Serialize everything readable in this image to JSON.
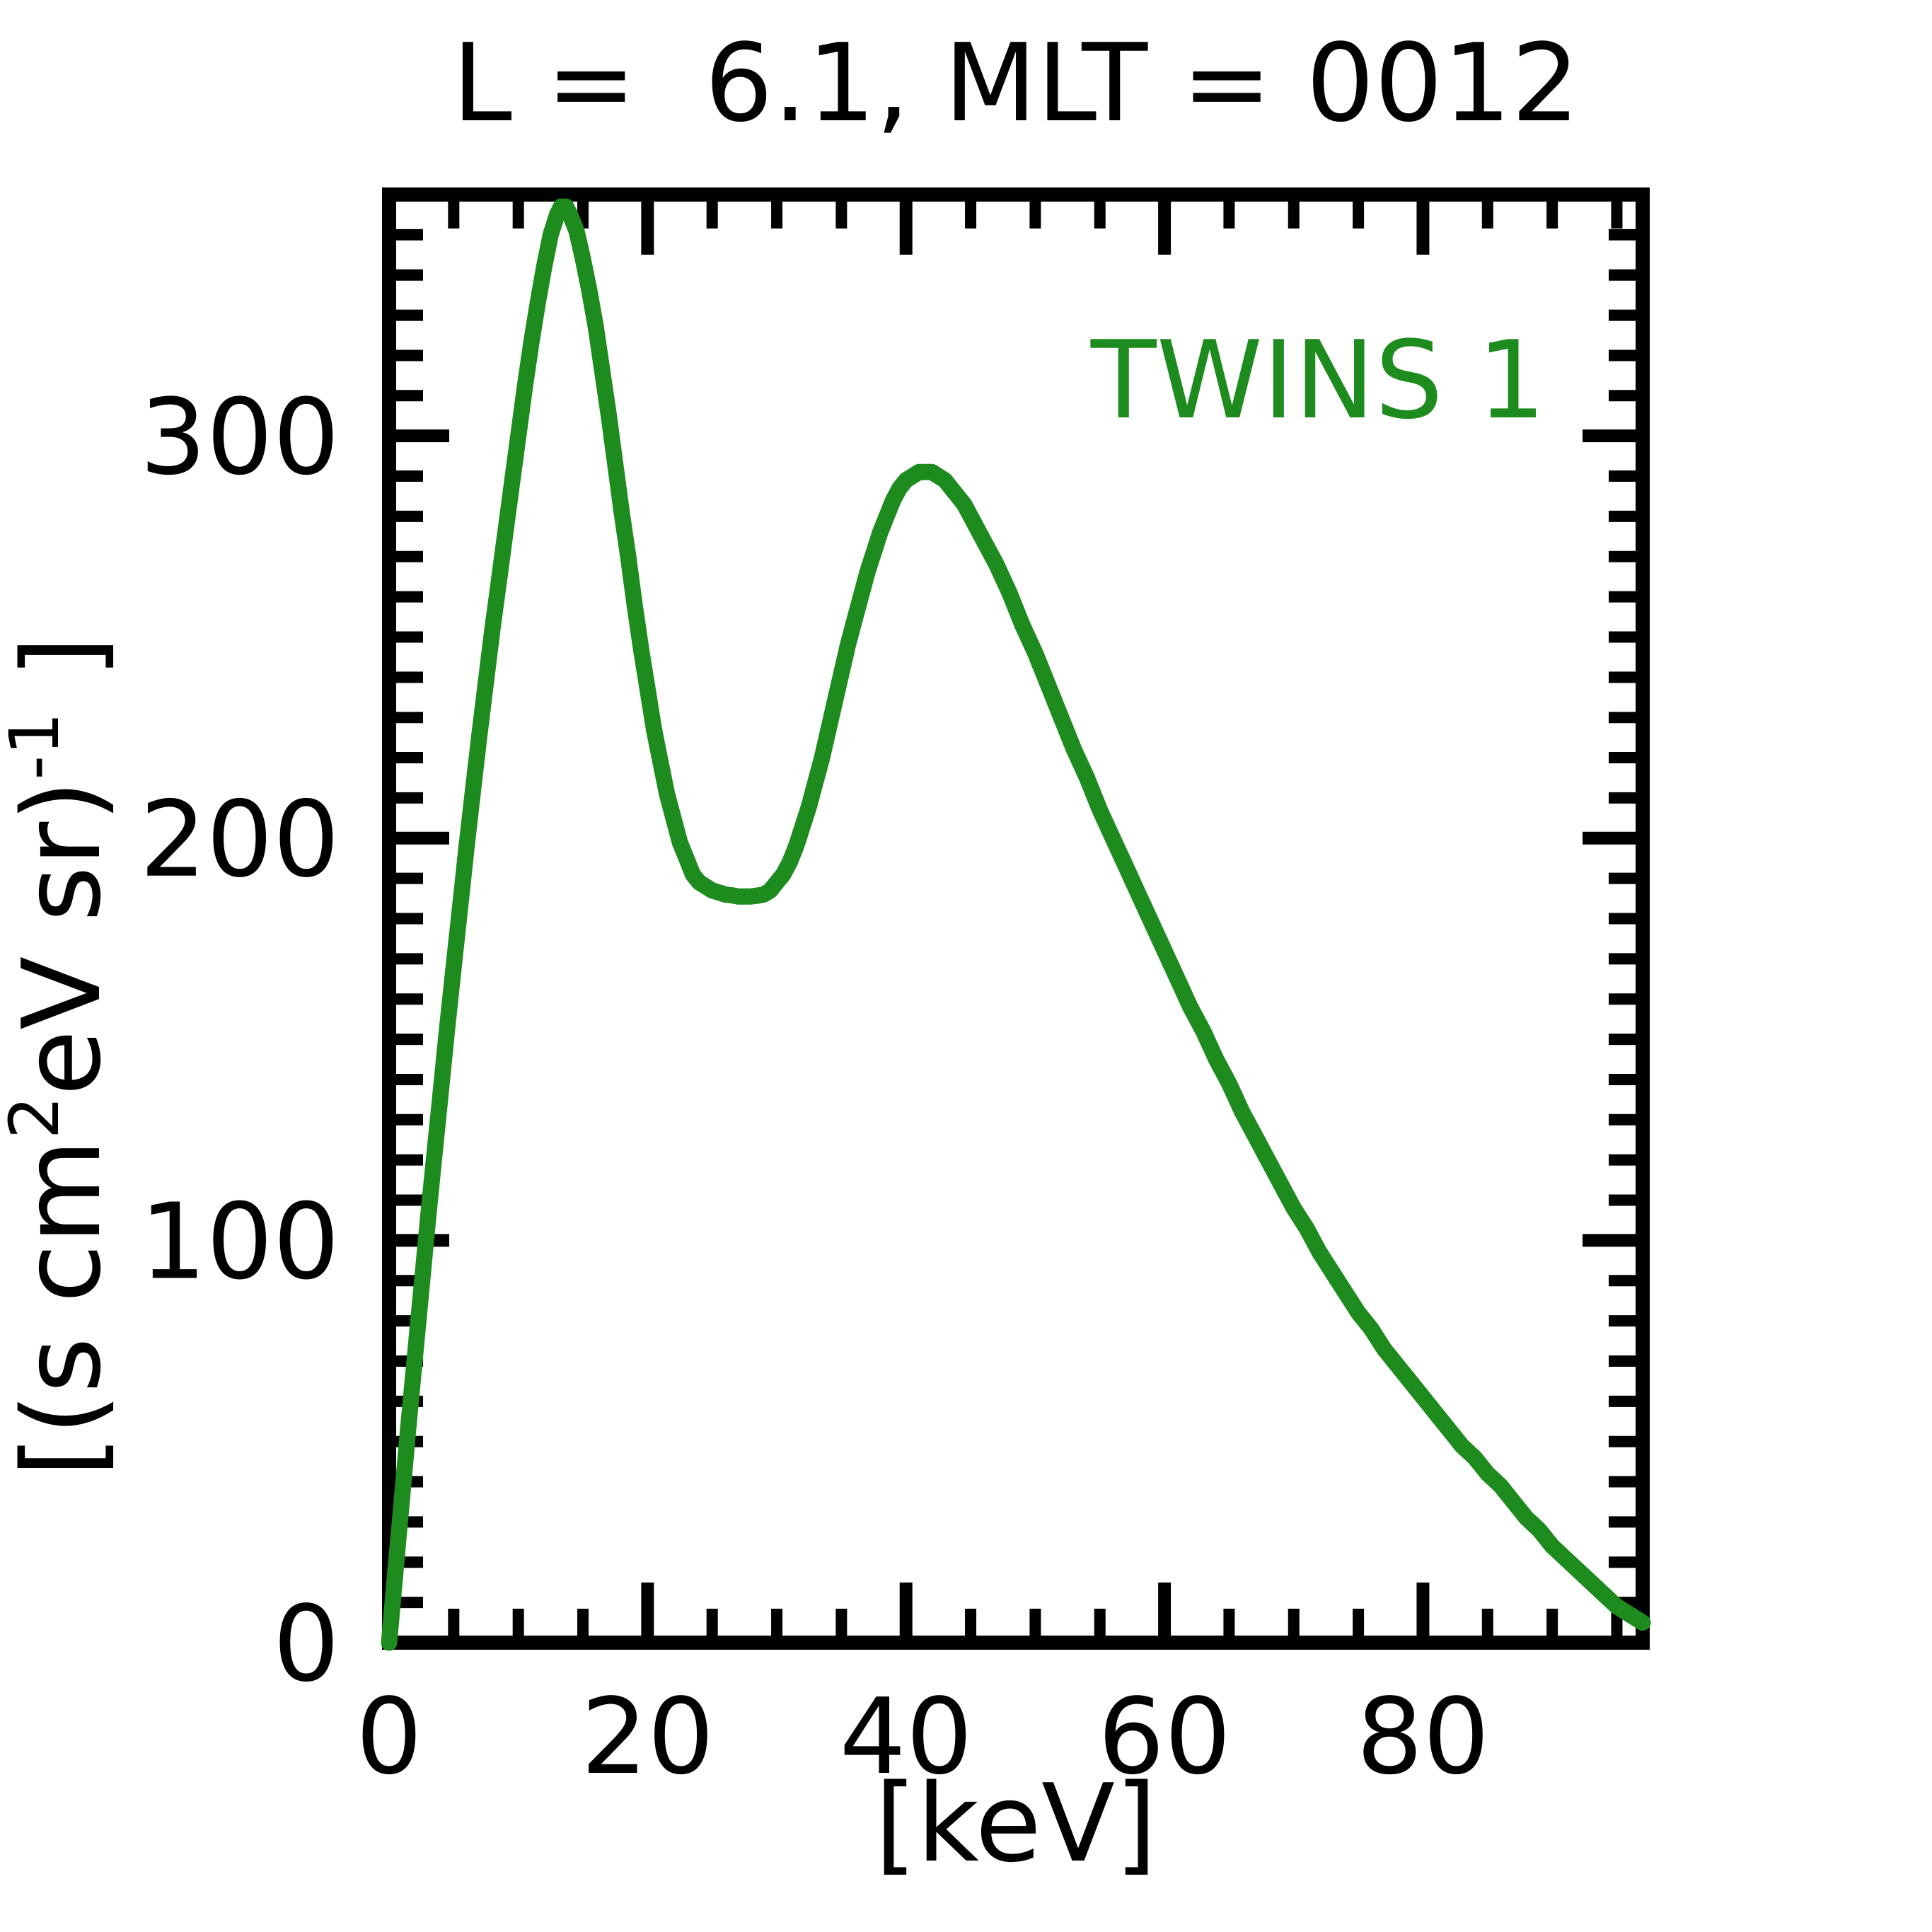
{
  "title": "L =  6.1, MLT = 0012",
  "legend": {
    "label": "TWINS 1",
    "color": "#1e8b1e"
  },
  "axes": {
    "xlabel": "[keV]",
    "ylabel": {
      "pre": "[(s cm",
      "sup1": "2",
      "mid": "eV sr)",
      "sup2": "-1",
      "post": " ]"
    },
    "x_tick_labels": [
      "0",
      "20",
      "40",
      "60",
      "80"
    ],
    "y_tick_labels": [
      "0",
      "100",
      "200",
      "300"
    ]
  },
  "chart_data": {
    "type": "line",
    "title": "L =  6.1, MLT = 0012",
    "xlabel": "[keV]",
    "ylabel": "[(s cm^2 eV sr)^-1]",
    "xlim": [
      0,
      97
    ],
    "ylim": [
      0,
      360
    ],
    "x_major_ticks": [
      0,
      20,
      40,
      60,
      80
    ],
    "x_minor_step": 5,
    "y_major_ticks": [
      0,
      100,
      200,
      300
    ],
    "y_minor_step": 10,
    "grid": false,
    "ticks": "inward-all-sides",
    "legend_position": "upper right",
    "series": [
      {
        "name": "TWINS 1",
        "color": "#1e8b1e",
        "peaks": [
          {
            "x": 13.4,
            "y": 357
          },
          {
            "x": 41.5,
            "y": 291
          }
        ],
        "valley": {
          "x": 28,
          "y": 186
        },
        "points": [
          [
            0,
            0
          ],
          [
            0.5,
            18
          ],
          [
            1,
            36
          ],
          [
            1.5,
            54
          ],
          [
            2,
            71
          ],
          [
            2.5,
            88
          ],
          [
            3,
            105
          ],
          [
            3.5,
            121
          ],
          [
            4,
            137
          ],
          [
            4.5,
            153
          ],
          [
            5,
            168
          ],
          [
            5.5,
            183
          ],
          [
            6,
            198
          ],
          [
            6.5,
            212
          ],
          [
            7,
            226
          ],
          [
            7.5,
            239
          ],
          [
            8,
            252
          ],
          [
            8.5,
            264
          ],
          [
            9,
            276
          ],
          [
            9.5,
            288
          ],
          [
            10,
            300
          ],
          [
            10.5,
            312
          ],
          [
            11,
            323
          ],
          [
            11.5,
            333
          ],
          [
            12,
            342
          ],
          [
            12.5,
            350
          ],
          [
            13,
            355
          ],
          [
            13.3,
            357
          ],
          [
            13.7,
            357
          ],
          [
            14,
            355
          ],
          [
            14.5,
            351
          ],
          [
            15,
            344
          ],
          [
            15.5,
            336
          ],
          [
            16,
            327
          ],
          [
            16.5,
            316
          ],
          [
            17,
            305
          ],
          [
            17.5,
            293
          ],
          [
            18,
            281
          ],
          [
            18.5,
            270
          ],
          [
            19,
            258
          ],
          [
            19.5,
            247
          ],
          [
            20,
            237
          ],
          [
            20.5,
            227
          ],
          [
            21,
            219
          ],
          [
            21.5,
            211
          ],
          [
            22,
            205
          ],
          [
            22.5,
            199
          ],
          [
            23,
            195
          ],
          [
            23.5,
            191
          ],
          [
            24,
            189
          ],
          [
            24.5,
            188
          ],
          [
            25,
            187
          ],
          [
            25.5,
            186.5
          ],
          [
            26,
            186
          ],
          [
            26.5,
            185.8
          ],
          [
            27,
            185.5
          ],
          [
            27.5,
            185.5
          ],
          [
            28,
            185.5
          ],
          [
            28.5,
            185.7
          ],
          [
            29,
            186
          ],
          [
            29.5,
            187
          ],
          [
            30,
            189
          ],
          [
            30.5,
            191
          ],
          [
            31,
            194
          ],
          [
            31.5,
            198
          ],
          [
            32,
            203
          ],
          [
            32.5,
            208
          ],
          [
            33,
            214
          ],
          [
            33.5,
            220
          ],
          [
            34,
            227
          ],
          [
            34.5,
            234
          ],
          [
            35,
            241
          ],
          [
            35.5,
            248
          ],
          [
            36,
            254
          ],
          [
            36.5,
            260
          ],
          [
            37,
            266
          ],
          [
            37.5,
            271
          ],
          [
            38,
            276
          ],
          [
            38.5,
            280
          ],
          [
            39,
            284
          ],
          [
            39.5,
            287
          ],
          [
            40,
            289
          ],
          [
            40.5,
            290
          ],
          [
            41,
            291
          ],
          [
            41.5,
            291
          ],
          [
            42,
            291
          ],
          [
            42.5,
            290
          ],
          [
            43,
            289
          ],
          [
            43.5,
            287
          ],
          [
            44,
            285
          ],
          [
            44.5,
            283
          ],
          [
            45,
            280
          ],
          [
            46,
            274
          ],
          [
            47,
            268
          ],
          [
            48,
            261
          ],
          [
            49,
            253
          ],
          [
            50,
            246
          ],
          [
            51,
            238
          ],
          [
            52,
            230
          ],
          [
            53,
            222
          ],
          [
            54,
            215
          ],
          [
            55,
            207
          ],
          [
            56,
            200
          ],
          [
            57,
            193
          ],
          [
            58,
            186
          ],
          [
            59,
            179
          ],
          [
            60,
            172
          ],
          [
            61,
            165
          ],
          [
            62,
            158
          ],
          [
            63,
            152
          ],
          [
            64,
            145
          ],
          [
            65,
            139
          ],
          [
            66,
            132
          ],
          [
            67,
            126
          ],
          [
            68,
            120
          ],
          [
            69,
            114
          ],
          [
            70,
            108
          ],
          [
            71,
            103
          ],
          [
            72,
            97
          ],
          [
            73,
            92
          ],
          [
            74,
            87
          ],
          [
            75,
            82
          ],
          [
            76,
            78
          ],
          [
            77,
            73
          ],
          [
            78,
            69
          ],
          [
            79,
            65
          ],
          [
            80,
            61
          ],
          [
            81,
            57
          ],
          [
            82,
            53
          ],
          [
            83,
            49
          ],
          [
            84,
            46
          ],
          [
            85,
            42
          ],
          [
            86,
            39
          ],
          [
            87,
            35
          ],
          [
            88,
            31
          ],
          [
            89,
            28
          ],
          [
            90,
            24
          ],
          [
            91,
            21
          ],
          [
            92,
            18
          ],
          [
            93,
            15
          ],
          [
            94,
            12
          ],
          [
            95,
            9
          ],
          [
            96,
            7
          ],
          [
            97,
            5
          ]
        ]
      }
    ]
  },
  "colors": {
    "line": "#1e8b1e",
    "axis": "#000000",
    "background": "#ffffff"
  }
}
